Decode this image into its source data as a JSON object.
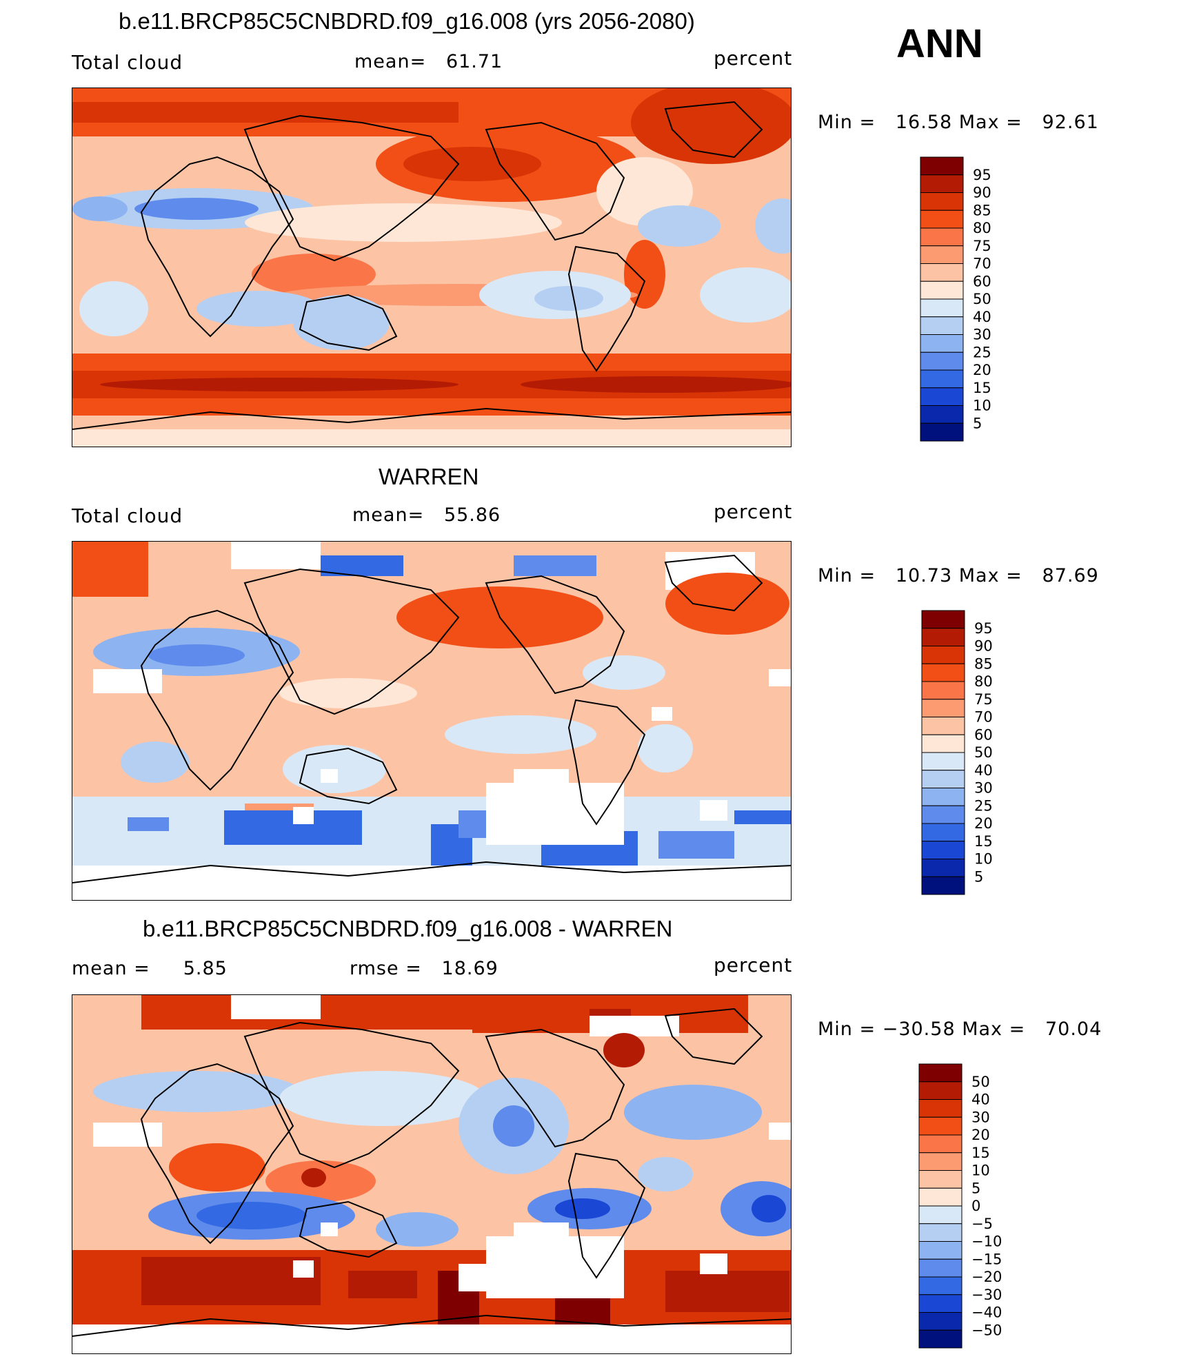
{
  "season": "ANN",
  "panels": [
    {
      "id": "model",
      "title": "b.e11.BRCP85C5CNBDRD.f09_g16.008 (yrs 2056-2080)",
      "left_label": "Total cloud",
      "center_label": "mean=   61.71",
      "units": "percent",
      "minmax": "Min =   16.58 Max =   92.61"
    },
    {
      "id": "obs",
      "title": "WARREN",
      "left_label": "Total cloud",
      "center_label": "mean=   55.86",
      "units": "percent",
      "minmax": "Min =   10.73 Max =   87.69"
    },
    {
      "id": "diff",
      "title": "b.e11.BRCP85C5CNBDRD.f09_g16.008 - WARREN",
      "left_label": "mean =     5.85",
      "center_label": "rmse =   18.69",
      "units": "percent",
      "minmax": "Min = −30.58 Max =   70.04"
    }
  ],
  "colorbars": {
    "absolute": {
      "labels": [
        "95",
        "90",
        "85",
        "80",
        "75",
        "70",
        "60",
        "50",
        "40",
        "30",
        "25",
        "20",
        "15",
        "10",
        "5"
      ],
      "colors": [
        "#7f0000",
        "#b31b05",
        "#d93406",
        "#f24f16",
        "#fa7548",
        "#fc9a72",
        "#fdc3a5",
        "#fee7d6",
        "#d9e8f7",
        "#b5cff3",
        "#8db3f1",
        "#5f8cec",
        "#336ae3",
        "#1a47d4",
        "#0a28ab",
        "#00117d"
      ]
    },
    "difference": {
      "labels": [
        "50",
        "40",
        "30",
        "20",
        "15",
        "10",
        "5",
        "0",
        "−5",
        "−10",
        "−15",
        "−20",
        "−30",
        "−40",
        "−50"
      ],
      "colors": [
        "#7f0000",
        "#b31b05",
        "#d93406",
        "#f24f16",
        "#fa7548",
        "#fc9a72",
        "#fdc3a5",
        "#fee7d6",
        "#d9e8f7",
        "#b5cff3",
        "#8db3f1",
        "#5f8cec",
        "#336ae3",
        "#1a47d4",
        "#0a28ab",
        "#00117d"
      ]
    }
  }
}
